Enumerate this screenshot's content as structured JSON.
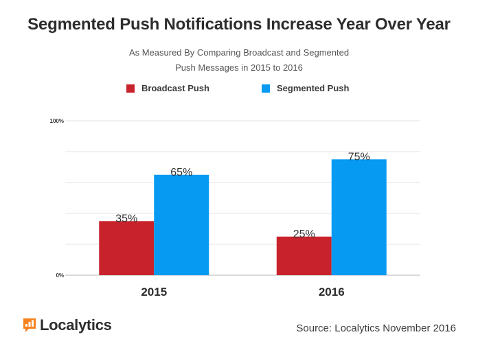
{
  "header": {
    "title": "Segmented Push Notifications Increase Year Over Year",
    "subtitle_line1": "As Measured By Comparing Broadcast and Segmented",
    "subtitle_line2": "Push Messages in 2015 to 2016"
  },
  "colors": {
    "broadcast": "#c8232c",
    "segmented": "#069af3",
    "grid": "#e3e3e3",
    "baseline": "#b5b5b5",
    "logo": "#f5821f"
  },
  "chart_data": {
    "type": "bar",
    "title": "Segmented Push Notifications Increase Year Over Year",
    "categories": [
      "2015",
      "2016"
    ],
    "series": [
      {
        "name": "Broadcast Push",
        "values": [
          35,
          25
        ],
        "labels": [
          "35%",
          "25%"
        ],
        "color": "#c8232c"
      },
      {
        "name": "Segmented Push",
        "values": [
          65,
          75
        ],
        "labels": [
          "65%",
          "75%"
        ],
        "color": "#069af3"
      }
    ],
    "ylim": [
      0,
      100
    ],
    "ytick_labels": [
      "100%",
      "0%"
    ],
    "grid": true,
    "grid_step": 20,
    "legend": "top-center",
    "xlabel": "",
    "ylabel": ""
  },
  "footer": {
    "brand": "Localytics",
    "source": "Source: Localytics November 2016"
  },
  "icons": {
    "logo": "bar-chart-logo-icon"
  }
}
